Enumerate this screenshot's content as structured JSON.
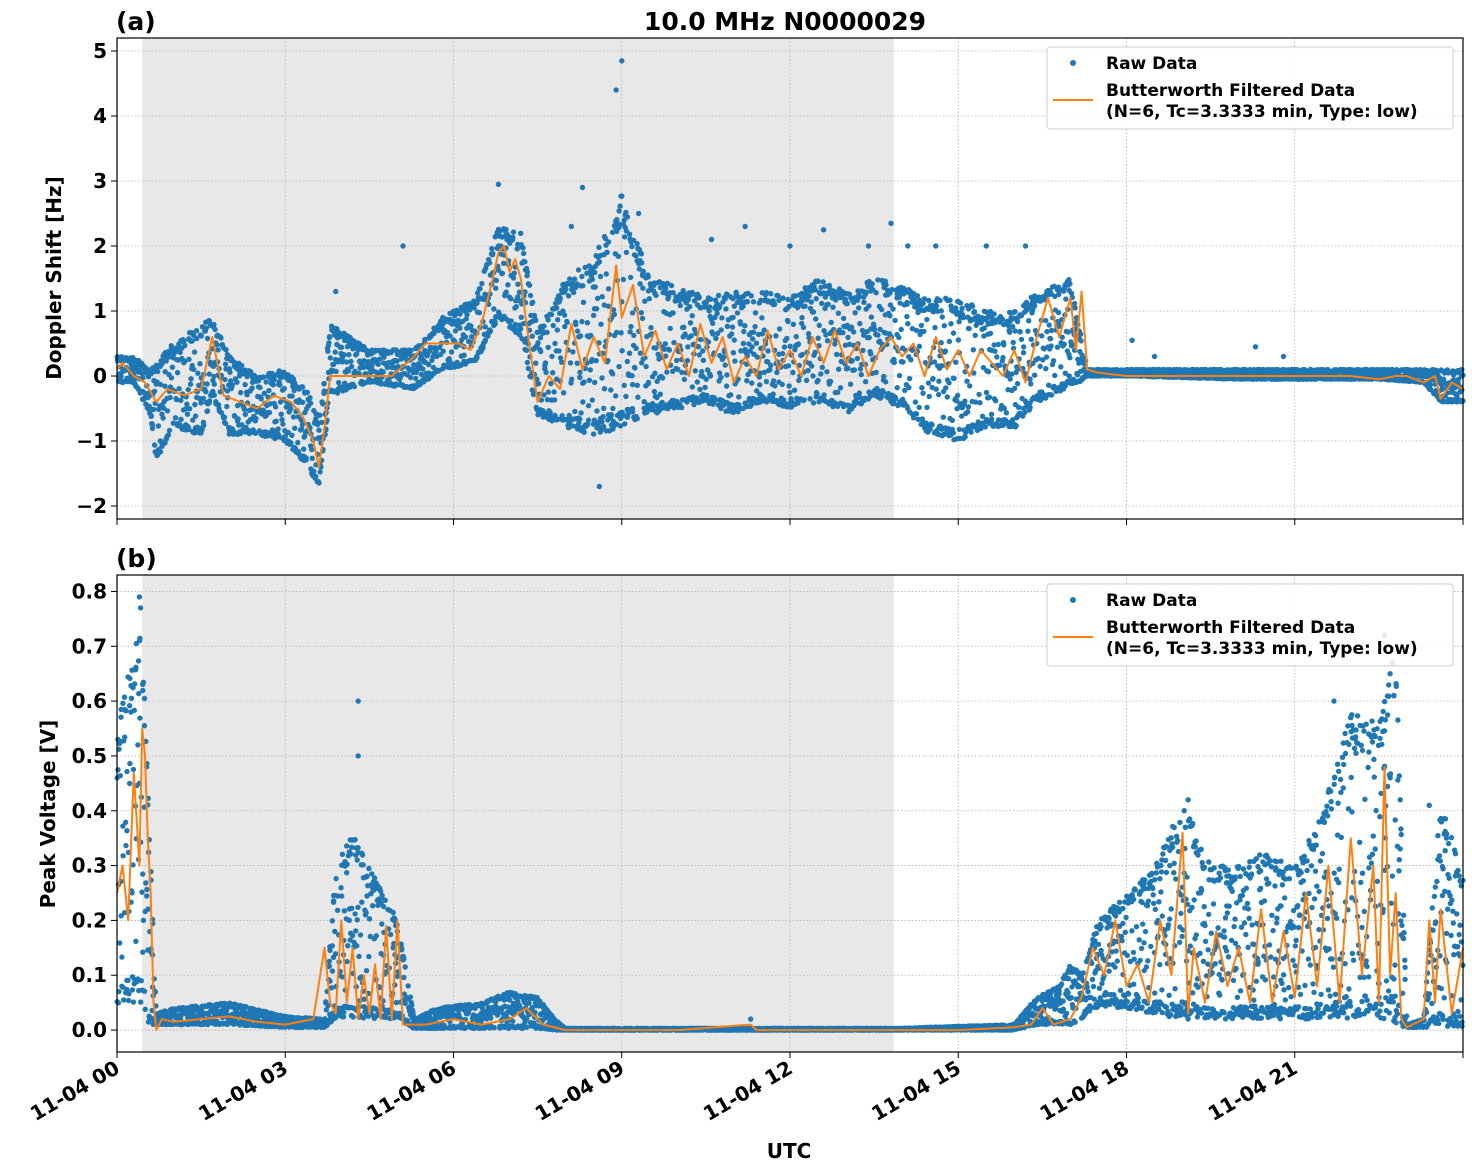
{
  "figure": {
    "title": "10.0 MHz N0000029",
    "xlabel": "UTC",
    "x_ticks": [
      "11-04 00",
      "11-04 03",
      "11-04 06",
      "11-04 09",
      "11-04 12",
      "11-04 15",
      "11-04 18",
      "11-04 21"
    ],
    "colors": {
      "raw": "#1f77b4",
      "filtered": "#ff7f0e",
      "shade": "#e8e8e8",
      "grid": "#b0b0b0"
    }
  },
  "chart_data": [
    {
      "type": "scatter",
      "panel_label": "(a)",
      "title": "10.0 MHz N0000029",
      "xlabel": "UTC",
      "ylabel": "Doppler Shift [Hz]",
      "xlim": [
        0,
        24
      ],
      "ylim": [
        -2.2,
        5.2
      ],
      "y_ticks": [
        "−2",
        "−1",
        "0",
        "1",
        "2",
        "3",
        "4",
        "5"
      ],
      "y_tick_values": [
        -2,
        -1,
        0,
        1,
        2,
        3,
        4,
        5
      ],
      "grid": true,
      "legend_position": "top-right",
      "shaded_interval": [
        0.45,
        13.85
      ],
      "legend": [
        "Raw Data",
        "Butterworth Filtered Data",
        "(N=6, Tc=3.3333 min, Type: low)"
      ],
      "series": [
        {
          "name": "Raw Data",
          "kind": "scatter",
          "envelope": {
            "x": [
              0,
              0.3,
              0.6,
              0.7,
              1.0,
              1.5,
              1.7,
              2.0,
              2.5,
              3.0,
              3.4,
              3.6,
              3.8,
              4.5,
              5.3,
              5.8,
              6.4,
              6.8,
              7.2,
              7.5,
              8.0,
              8.5,
              9.0,
              9.5,
              10.0,
              10.5,
              11.0,
              11.5,
              12.0,
              12.5,
              13.0,
              13.5,
              14.0,
              14.5,
              15.0,
              15.5,
              16.0,
              16.4,
              17.0,
              17.3,
              18,
              20,
              22.5,
              23.3,
              23.6,
              24
            ],
            "low": [
              -0.1,
              -0.1,
              -0.6,
              -1.3,
              -0.8,
              -0.9,
              -0.3,
              -0.9,
              -0.9,
              -1.0,
              -1.4,
              -1.7,
              -0.3,
              -0.1,
              -0.2,
              0.1,
              0.2,
              0.9,
              0.6,
              -0.6,
              -0.8,
              -0.9,
              -0.8,
              -0.6,
              -0.5,
              -0.4,
              -0.6,
              -0.4,
              -0.5,
              -0.4,
              -0.6,
              -0.3,
              -0.5,
              -0.9,
              -1.0,
              -0.8,
              -0.8,
              -0.4,
              -0.2,
              0.0,
              0.0,
              -0.05,
              -0.05,
              -0.1,
              -0.4,
              -0.4
            ],
            "high": [
              0.3,
              0.3,
              0.1,
              0.2,
              0.5,
              0.8,
              0.9,
              0.3,
              0.0,
              0.1,
              -0.2,
              -0.7,
              0.8,
              0.4,
              0.4,
              0.9,
              1.2,
              2.3,
              2.2,
              0.7,
              1.5,
              1.8,
              2.8,
              1.5,
              1.4,
              1.2,
              1.3,
              1.3,
              1.2,
              1.5,
              1.3,
              1.5,
              1.4,
              1.2,
              1.2,
              1.0,
              1.0,
              1.3,
              1.5,
              0.1,
              0.1,
              0.1,
              0.1,
              0.1,
              0.1,
              0.1
            ]
          },
          "outliers": [
            [
              3.9,
              1.3
            ],
            [
              5.1,
              2.0
            ],
            [
              6.8,
              2.95
            ],
            [
              8.1,
              2.3
            ],
            [
              8.3,
              2.9
            ],
            [
              8.6,
              -1.7
            ],
            [
              8.9,
              4.4
            ],
            [
              9.0,
              4.85
            ],
            [
              9.3,
              2.5
            ],
            [
              10.6,
              2.1
            ],
            [
              11.2,
              2.3
            ],
            [
              12.0,
              2.0
            ],
            [
              12.6,
              2.25
            ],
            [
              13.4,
              2.0
            ],
            [
              13.8,
              2.35
            ],
            [
              14.1,
              2.0
            ],
            [
              14.6,
              2.0
            ],
            [
              15.5,
              2.0
            ],
            [
              16.2,
              2.0
            ],
            [
              18.1,
              0.55
            ],
            [
              18.5,
              0.3
            ],
            [
              20.3,
              0.45
            ],
            [
              20.8,
              0.3
            ]
          ]
        },
        {
          "name": "Butterworth Filtered Data",
          "kind": "line",
          "x": [
            0,
            0.1,
            0.3,
            0.5,
            0.7,
            0.9,
            1.2,
            1.5,
            1.7,
            1.9,
            2.2,
            2.5,
            2.8,
            3.1,
            3.3,
            3.5,
            3.6,
            3.7,
            3.8,
            4.1,
            4.5,
            4.9,
            5.3,
            5.5,
            5.8,
            6.1,
            6.3,
            6.5,
            6.7,
            6.8,
            6.9,
            7.0,
            7.1,
            7.2,
            7.3,
            7.5,
            7.7,
            7.9,
            8.1,
            8.3,
            8.5,
            8.7,
            8.9,
            9.0,
            9.2,
            9.4,
            9.6,
            9.8,
            10.0,
            10.2,
            10.4,
            10.6,
            10.8,
            11.0,
            11.2,
            11.4,
            11.6,
            11.8,
            12.0,
            12.2,
            12.4,
            12.6,
            12.8,
            13.0,
            13.2,
            13.4,
            13.6,
            13.8,
            14.0,
            14.2,
            14.4,
            14.6,
            14.8,
            15.0,
            15.2,
            15.4,
            15.6,
            15.8,
            16.0,
            16.2,
            16.4,
            16.6,
            16.8,
            17.0,
            17.1,
            17.2,
            17.3,
            17.5,
            18,
            19,
            20,
            21,
            22,
            22.5,
            22.8,
            23.0,
            23.3,
            23.5,
            23.6,
            23.8,
            24
          ],
          "y": [
            0.1,
            0.2,
            0.0,
            -0.1,
            -0.4,
            -0.2,
            -0.3,
            -0.2,
            0.6,
            -0.3,
            -0.4,
            -0.5,
            -0.3,
            -0.4,
            -0.6,
            -1.0,
            -1.4,
            -0.8,
            0.0,
            0.0,
            0.0,
            0.0,
            0.3,
            0.5,
            0.5,
            0.5,
            0.4,
            0.8,
            1.5,
            1.9,
            2.0,
            1.6,
            1.8,
            1.5,
            0.8,
            -0.4,
            0.0,
            -0.2,
            0.8,
            0.1,
            0.6,
            0.2,
            1.7,
            0.9,
            1.4,
            0.3,
            0.7,
            0.1,
            0.5,
            0.0,
            0.8,
            0.2,
            0.6,
            -0.1,
            0.3,
            0.0,
            0.7,
            0.1,
            0.4,
            0.0,
            0.6,
            0.2,
            0.7,
            0.2,
            0.5,
            0.0,
            0.4,
            0.6,
            0.3,
            0.5,
            0.0,
            0.6,
            0.1,
            0.4,
            0.0,
            0.4,
            0.2,
            0.0,
            0.4,
            -0.1,
            0.6,
            1.2,
            0.6,
            1.2,
            0.4,
            1.3,
            0.1,
            0.05,
            0.0,
            0.0,
            0.0,
            0.0,
            0.0,
            -0.05,
            0.0,
            0.0,
            -0.1,
            0.0,
            -0.35,
            -0.1,
            -0.2
          ]
        }
      ]
    },
    {
      "type": "scatter",
      "panel_label": "(b)",
      "xlabel": "UTC",
      "ylabel": "Peak Voltage [V]",
      "xlim": [
        0,
        24
      ],
      "ylim": [
        -0.04,
        0.83
      ],
      "y_ticks": [
        "0.0",
        "0.1",
        "0.2",
        "0.3",
        "0.4",
        "0.5",
        "0.6",
        "0.7",
        "0.8"
      ],
      "y_tick_values": [
        0.0,
        0.1,
        0.2,
        0.3,
        0.4,
        0.5,
        0.6,
        0.7,
        0.8
      ],
      "grid": true,
      "legend_position": "top-right",
      "shaded_interval": [
        0.45,
        13.85
      ],
      "legend": [
        "Raw Data",
        "Butterworth Filtered Data",
        "(N=6, Tc=3.3333 min, Type: low)"
      ],
      "series": [
        {
          "name": "Raw Data",
          "kind": "scatter",
          "envelope": {
            "x": [
              0,
              0.2,
              0.4,
              0.5,
              0.6,
              0.7,
              1.0,
              2.0,
              3.0,
              3.7,
              3.9,
              4.2,
              4.5,
              4.8,
              5.0,
              5.3,
              5.7,
              6.5,
              7.0,
              7.5,
              7.8,
              8.0,
              13.9,
              16.0,
              16.4,
              16.8,
              17.0,
              17.2,
              17.5,
              18.0,
              18.5,
              19.0,
              19.5,
              20.0,
              20.5,
              21.0,
              21.5,
              22.0,
              22.5,
              22.8,
              23.0,
              23.3,
              23.6,
              24
            ],
            "low": [
              0.04,
              0.05,
              0.05,
              0.03,
              0.0,
              0.01,
              0.01,
              0.01,
              0.005,
              0.005,
              0.02,
              0.02,
              0.02,
              0.02,
              0.02,
              0.003,
              0.003,
              0.003,
              0.003,
              0.003,
              0.0,
              0.0,
              0.0,
              0.0,
              0.01,
              0.01,
              0.01,
              0.02,
              0.04,
              0.04,
              0.03,
              0.02,
              0.02,
              0.02,
              0.02,
              0.02,
              0.02,
              0.02,
              0.02,
              0.01,
              0.005,
              0.005,
              0.005,
              0.005
            ],
            "high": [
              0.55,
              0.65,
              0.75,
              0.6,
              0.3,
              0.03,
              0.04,
              0.05,
              0.025,
              0.02,
              0.3,
              0.36,
              0.3,
              0.24,
              0.2,
              0.02,
              0.04,
              0.05,
              0.07,
              0.06,
              0.02,
              0.003,
              0.003,
              0.01,
              0.06,
              0.08,
              0.12,
              0.1,
              0.2,
              0.25,
              0.3,
              0.42,
              0.3,
              0.3,
              0.33,
              0.3,
              0.4,
              0.58,
              0.56,
              0.7,
              0.01,
              0.02,
              0.42,
              0.28
            ]
          },
          "outliers": [
            [
              0.25,
              0.58
            ],
            [
              0.4,
              0.79
            ],
            [
              0.42,
              0.77
            ],
            [
              4.3,
              0.6
            ],
            [
              4.3,
              0.5
            ],
            [
              11.3,
              0.02
            ],
            [
              19.1,
              0.42
            ],
            [
              21.7,
              0.6
            ],
            [
              22.0,
              0.57
            ],
            [
              22.6,
              0.72
            ],
            [
              22.7,
              0.65
            ],
            [
              23.4,
              0.41
            ]
          ]
        },
        {
          "name": "Butterworth Filtered Data",
          "kind": "line",
          "x": [
            0,
            0.1,
            0.2,
            0.3,
            0.4,
            0.45,
            0.5,
            0.55,
            0.6,
            0.65,
            0.7,
            0.8,
            1.0,
            1.5,
            2.0,
            2.5,
            3.0,
            3.5,
            3.7,
            3.8,
            3.9,
            4.0,
            4.1,
            4.2,
            4.3,
            4.4,
            4.5,
            4.6,
            4.7,
            4.8,
            4.9,
            5.0,
            5.1,
            5.2,
            5.3,
            5.5,
            6.0,
            6.5,
            7.0,
            7.3,
            7.6,
            8.0,
            10,
            11.3,
            11.4,
            13,
            15,
            16,
            16.3,
            16.5,
            16.7,
            17.0,
            17.2,
            17.4,
            17.6,
            17.8,
            18.0,
            18.2,
            18.4,
            18.6,
            18.8,
            19.0,
            19.1,
            19.2,
            19.4,
            19.6,
            19.8,
            20.0,
            20.2,
            20.4,
            20.6,
            20.8,
            21.0,
            21.2,
            21.4,
            21.6,
            21.8,
            22.0,
            22.2,
            22.4,
            22.5,
            22.6,
            22.7,
            22.8,
            22.9,
            23.0,
            23.3,
            23.4,
            23.5,
            23.6,
            23.8,
            24
          ],
          "y": [
            0.25,
            0.3,
            0.2,
            0.47,
            0.3,
            0.55,
            0.5,
            0.35,
            0.25,
            0.05,
            0.0,
            0.02,
            0.015,
            0.02,
            0.025,
            0.015,
            0.01,
            0.02,
            0.15,
            0.05,
            0.03,
            0.2,
            0.05,
            0.15,
            0.02,
            0.1,
            0.03,
            0.12,
            0.02,
            0.19,
            0.02,
            0.2,
            0.01,
            0.01,
            0.01,
            0.01,
            0.02,
            0.01,
            0.02,
            0.04,
            0.01,
            0.0,
            0.0,
            0.01,
            0.0,
            0.0,
            0.0,
            0.005,
            0.01,
            0.04,
            0.01,
            0.02,
            0.06,
            0.15,
            0.1,
            0.2,
            0.08,
            0.12,
            0.05,
            0.2,
            0.1,
            0.36,
            0.03,
            0.15,
            0.05,
            0.18,
            0.08,
            0.15,
            0.05,
            0.22,
            0.05,
            0.18,
            0.06,
            0.25,
            0.08,
            0.3,
            0.05,
            0.35,
            0.1,
            0.3,
            0.05,
            0.48,
            0.1,
            0.25,
            0.02,
            0.005,
            0.02,
            0.2,
            0.05,
            0.22,
            0.03,
            0.15
          ]
        }
      ]
    }
  ]
}
